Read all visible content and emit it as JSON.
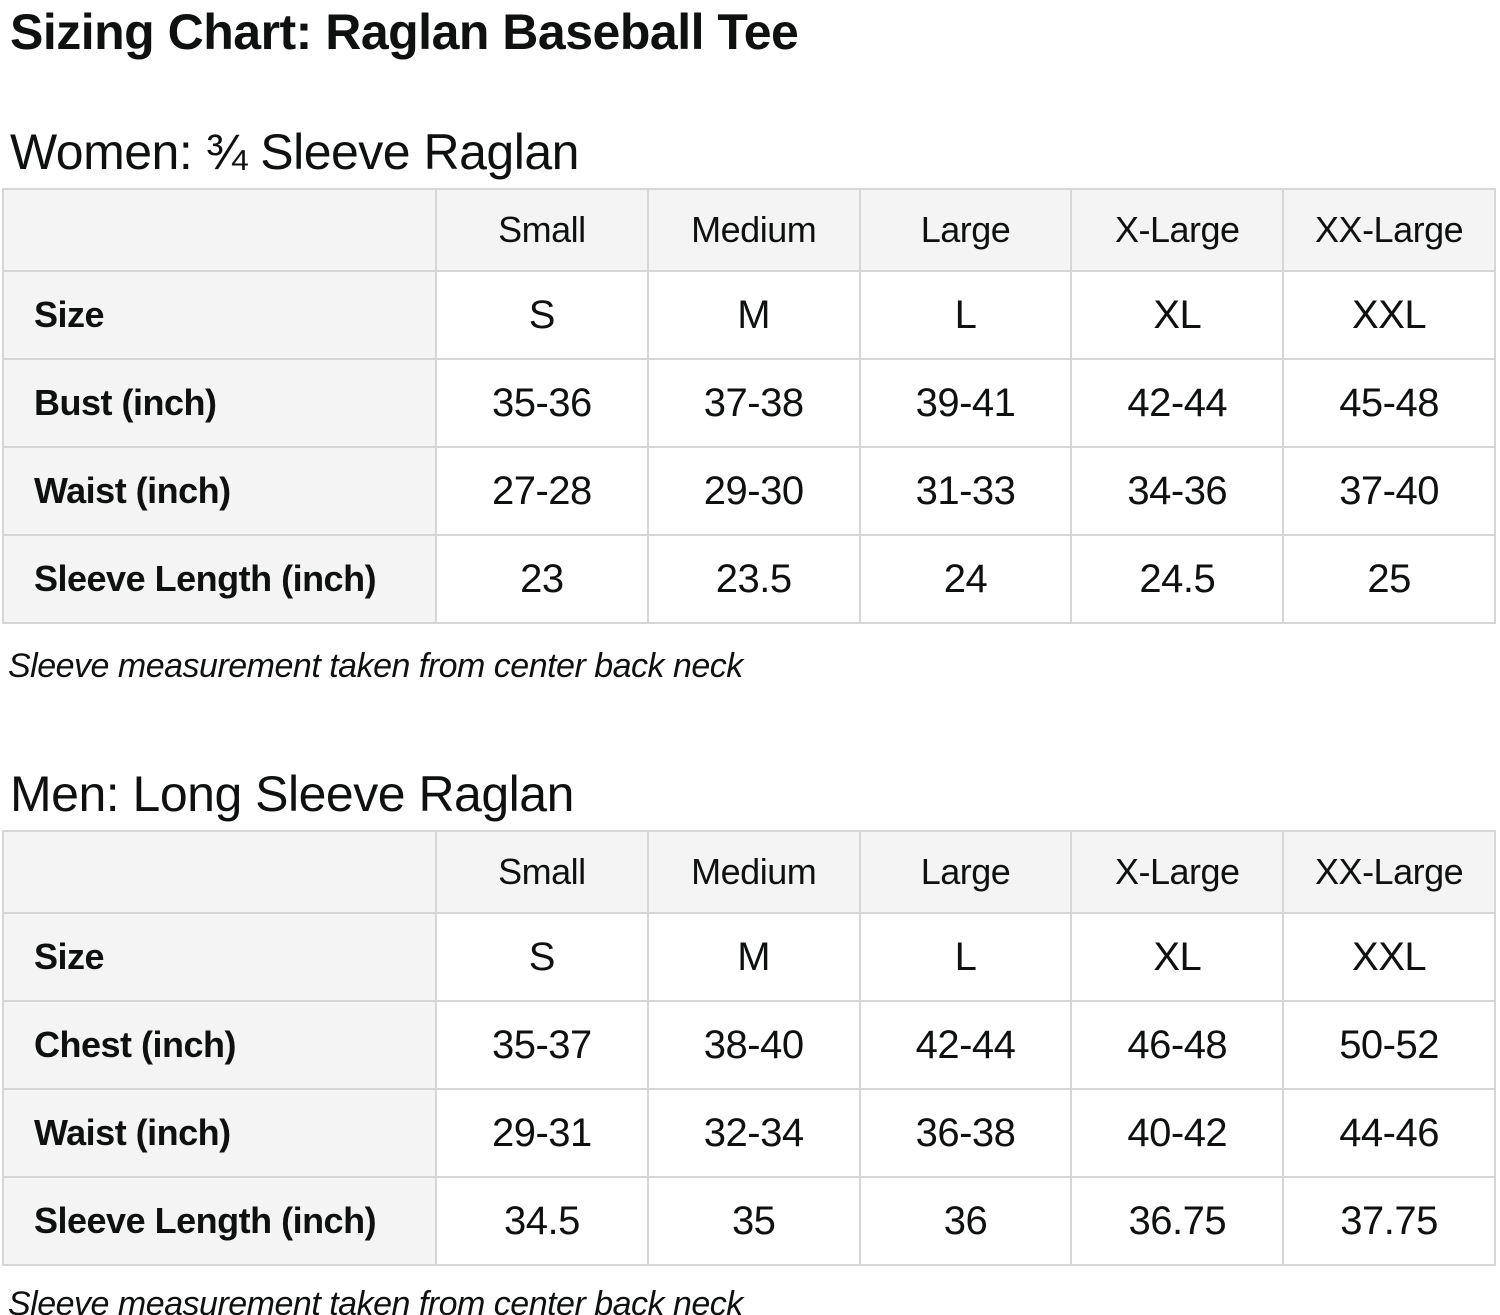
{
  "page": {
    "title": "Sizing Chart: Raglan Baseball Tee"
  },
  "colors": {
    "text": "#0f1111",
    "table_border": "#d6d6d6",
    "header_background": "#f4f4f4",
    "cell_background": "#ffffff"
  },
  "sections": [
    {
      "heading": "Women: ¾ Sleeve Raglan",
      "note": "Sleeve measurement taken from center back neck",
      "table": {
        "columns": [
          "",
          "Small",
          "Medium",
          "Large",
          "X-Large",
          "XX-Large"
        ],
        "rows": [
          {
            "label": "Size",
            "values": [
              "S",
              "M",
              "L",
              "XL",
              "XXL"
            ]
          },
          {
            "label": "Bust (inch)",
            "values": [
              "35-36",
              "37-38",
              "39-41",
              "42-44",
              "45-48"
            ]
          },
          {
            "label": "Waist (inch)",
            "values": [
              "27-28",
              "29-30",
              "31-33",
              "34-36",
              "37-40"
            ]
          },
          {
            "label": "Sleeve Length (inch)",
            "values": [
              "23",
              "23.5",
              "24",
              "24.5",
              "25"
            ]
          }
        ]
      }
    },
    {
      "heading": "Men: Long Sleeve Raglan",
      "note": "Sleeve measurement taken from center back neck",
      "table": {
        "columns": [
          "",
          "Small",
          "Medium",
          "Large",
          "X-Large",
          "XX-Large"
        ],
        "rows": [
          {
            "label": "Size",
            "values": [
              "S",
              "M",
              "L",
              "XL",
              "XXL"
            ]
          },
          {
            "label": "Chest (inch)",
            "values": [
              "35-37",
              "38-40",
              "42-44",
              "46-48",
              "50-52"
            ]
          },
          {
            "label": "Waist (inch)",
            "values": [
              "29-31",
              "32-34",
              "36-38",
              "40-42",
              "44-46"
            ]
          },
          {
            "label": "Sleeve Length (inch)",
            "values": [
              "34.5",
              "35",
              "36",
              "36.75",
              "37.75"
            ]
          }
        ]
      }
    }
  ]
}
